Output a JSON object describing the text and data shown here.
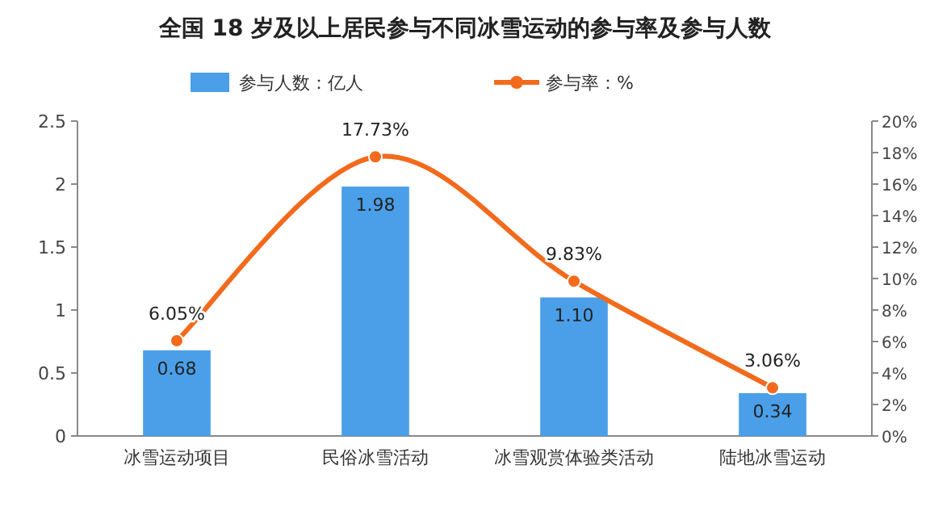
{
  "chart_data": {
    "type": "bar",
    "title": "全国 18 岁及以上居民参与不同冰雪运动的参与率及参与人数",
    "categories": [
      "冰雪运动项目",
      "民俗冰雪活动",
      "冰雪观赏体验类活动",
      "陆地冰雪运动"
    ],
    "series": [
      {
        "name": "参与人数：亿人",
        "color": "#4a9fe8",
        "values": [
          0.68,
          1.98,
          1.1,
          0.34
        ],
        "value_labels": [
          "0.68",
          "1.98",
          "1.10",
          "0.34"
        ]
      },
      {
        "name": "参与率：%",
        "type": "line",
        "axis": "y2",
        "color": "#f26a1c",
        "marker": "circle",
        "values": [
          6.05,
          17.73,
          9.83,
          3.06
        ],
        "value_labels": [
          "6.05%",
          "17.73%",
          "9.83%",
          "3.06%"
        ]
      }
    ],
    "ylim": [
      0,
      2.5
    ],
    "yticks": [
      0,
      0.5,
      1,
      1.5,
      2,
      2.5
    ],
    "y2lim": [
      0,
      20
    ],
    "y2ticks": [
      {
        "value": 0,
        "label": "0%"
      },
      {
        "value": 2,
        "label": "2%"
      },
      {
        "value": 4,
        "label": "4%"
      },
      {
        "value": 6,
        "label": "6%"
      },
      {
        "value": 8,
        "label": "8%"
      },
      {
        "value": 10,
        "label": "10%"
      },
      {
        "value": 12,
        "label": "12%"
      },
      {
        "value": 14,
        "label": "14%"
      },
      {
        "value": 16,
        "label": "16%"
      },
      {
        "value": 18,
        "label": "18%"
      },
      {
        "value": 20,
        "label": "20%"
      }
    ],
    "legend": "top"
  }
}
